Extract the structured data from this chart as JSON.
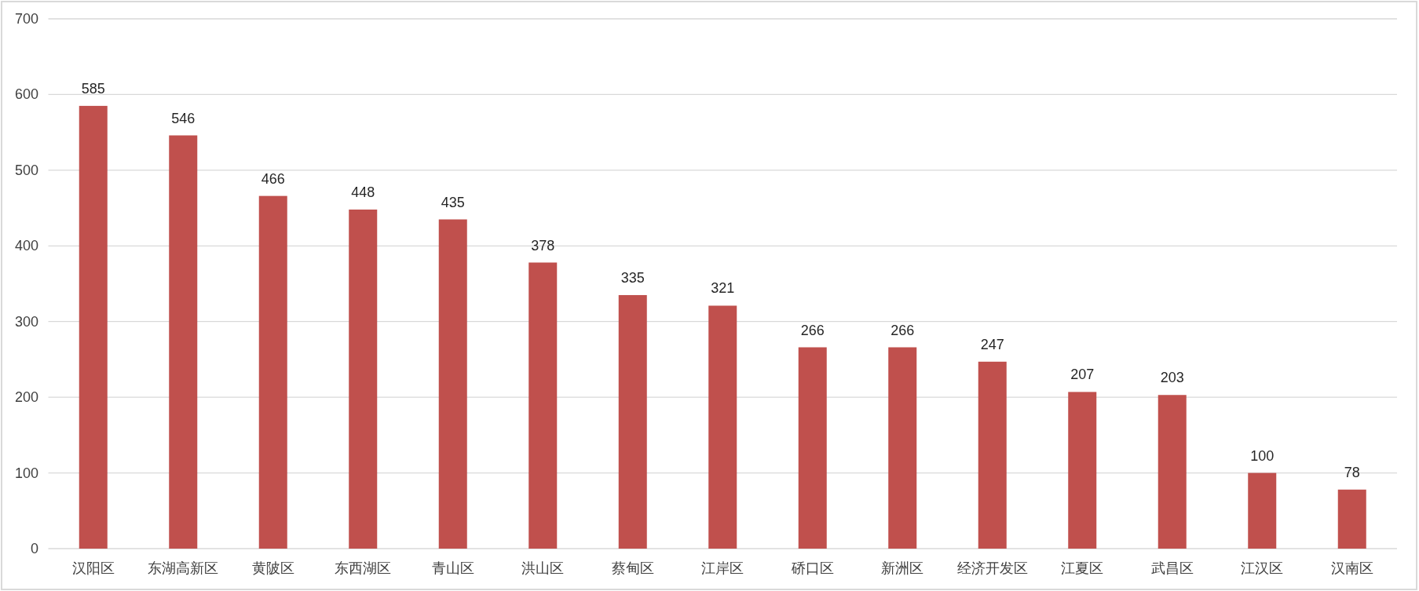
{
  "chart_data": {
    "type": "bar",
    "categories": [
      "汉阳区",
      "东湖高新区",
      "黄陂区",
      "东西湖区",
      "青山区",
      "洪山区",
      "蔡甸区",
      "江岸区",
      "硚口区",
      "新洲区",
      "经济开发区",
      "江夏区",
      "武昌区",
      "江汉区",
      "汉南区"
    ],
    "values": [
      585,
      546,
      466,
      448,
      435,
      378,
      335,
      321,
      266,
      266,
      247,
      207,
      203,
      100,
      78
    ],
    "color": "#c0504d",
    "ylim": [
      0,
      700
    ],
    "yticks": [
      0,
      100,
      200,
      300,
      400,
      500,
      600,
      700
    ],
    "grid": "y",
    "data_labels": true
  }
}
